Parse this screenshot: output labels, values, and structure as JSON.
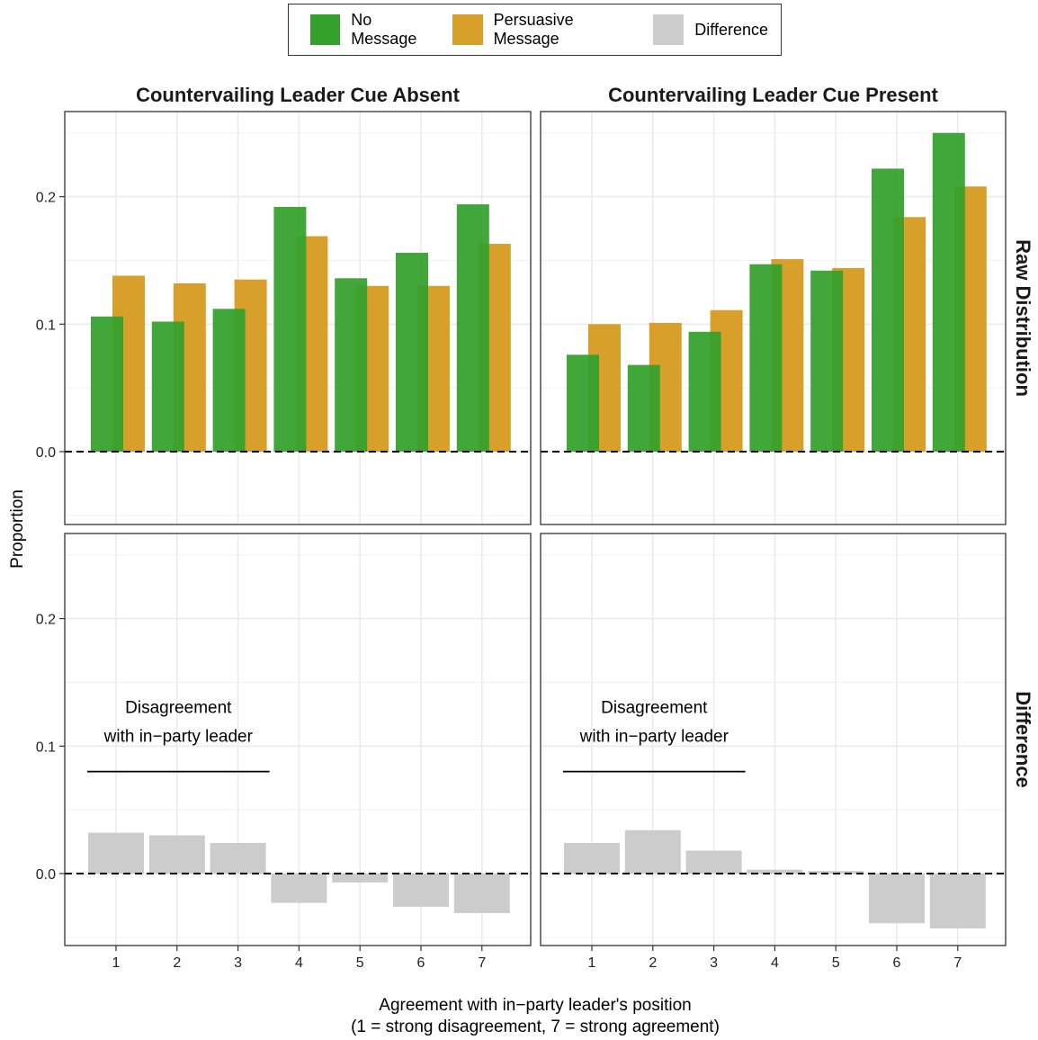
{
  "legend": {
    "items": [
      {
        "label": "No Message",
        "color": "#33A02C"
      },
      {
        "label": "Persuasive Message",
        "color": "#D99F2B"
      },
      {
        "label": "Difference",
        "color": "#CCCCCC"
      }
    ]
  },
  "chart_data": {
    "type": "bar",
    "facet_columns": [
      "Countervailing Leader Cue Absent",
      "Countervailing Leader Cue Present"
    ],
    "facet_rows": [
      "Raw Distribution",
      "Difference"
    ],
    "categories": [
      "1",
      "2",
      "3",
      "4",
      "5",
      "6",
      "7"
    ],
    "xlabel": "Agreement with in−party leader's position",
    "xlabel_sub": "(1 = strong disagreement, 7 = strong agreement)",
    "ylabel": "Proportion",
    "ylim": [
      -0.05,
      0.26
    ],
    "yticks": [
      "0.0",
      "0.1",
      "0.2"
    ],
    "reference_line": 0,
    "annotation": {
      "line1": "Disagreement",
      "line2": "with in−party leader",
      "x_range": [
        1,
        3
      ],
      "y": 0.08
    },
    "raw": [
      {
        "series": [
          {
            "name": "No Message",
            "values": [
              0.106,
              0.102,
              0.112,
              0.192,
              0.136,
              0.156,
              0.194
            ]
          },
          {
            "name": "Persuasive Message",
            "values": [
              0.138,
              0.132,
              0.135,
              0.169,
              0.13,
              0.13,
              0.163
            ]
          }
        ]
      },
      {
        "series": [
          {
            "name": "No Message",
            "values": [
              0.076,
              0.068,
              0.094,
              0.147,
              0.142,
              0.222,
              0.25
            ]
          },
          {
            "name": "Persuasive Message",
            "values": [
              0.1,
              0.101,
              0.111,
              0.151,
              0.144,
              0.184,
              0.208
            ]
          }
        ]
      }
    ],
    "difference": [
      {
        "series": [
          {
            "name": "Difference",
            "values": [
              0.032,
              0.03,
              0.024,
              -0.023,
              -0.007,
              -0.026,
              -0.031
            ]
          }
        ]
      },
      {
        "series": [
          {
            "name": "Difference",
            "values": [
              0.024,
              0.034,
              0.018,
              0.003,
              0.002,
              -0.039,
              -0.043
            ]
          }
        ]
      }
    ],
    "grid": true,
    "legend_position": "top"
  }
}
